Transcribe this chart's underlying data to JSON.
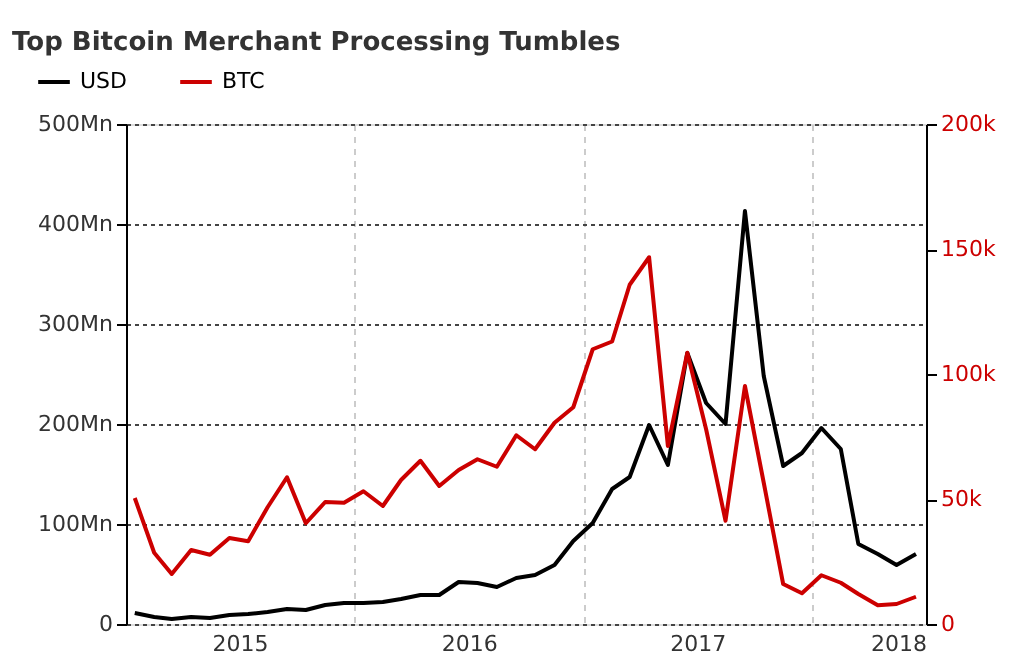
{
  "chart_data": {
    "type": "line",
    "title": "Top Bitcoin Merchant Processing Tumbles",
    "x": [
      "2015-01-15",
      "2015-02-15",
      "2015-03-15",
      "2015-04-15",
      "2015-05-15",
      "2015-06-15",
      "2015-07-15",
      "2015-08-15",
      "2015-09-15",
      "2015-10-15",
      "2015-11-15",
      "2015-12-15",
      "2016-01-15",
      "2016-02-15",
      "2016-03-15",
      "2016-04-15",
      "2016-05-15",
      "2016-06-15",
      "2016-07-15",
      "2016-08-15",
      "2016-09-15",
      "2016-10-15",
      "2016-11-15",
      "2016-12-15",
      "2017-01-15",
      "2017-02-15",
      "2017-03-15",
      "2017-04-15",
      "2017-05-15",
      "2017-06-15",
      "2017-07-15",
      "2017-08-15",
      "2017-09-15",
      "2017-10-15",
      "2017-11-15",
      "2017-12-15",
      "2018-01-15",
      "2018-02-15",
      "2018-03-15",
      "2018-04-15",
      "2018-05-15",
      "2018-06-15"
    ],
    "series": [
      {
        "name": "USD",
        "color": "#000000",
        "values": [
          11,
          7,
          5,
          7,
          6,
          9,
          10,
          12,
          15,
          14,
          19,
          21,
          21,
          22,
          25,
          29,
          29,
          42,
          41,
          37,
          46,
          49,
          59,
          83,
          101,
          135,
          147,
          199,
          159,
          271,
          221,
          200,
          413,
          248,
          158,
          171,
          196,
          175,
          80,
          70,
          59,
          70
        ]
      },
      {
        "name": "BTC",
        "color": "#cc0000",
        "axis": "y2",
        "values": [
          50400,
          28500,
          20000,
          29600,
          27700,
          34400,
          33100,
          46700,
          58700,
          40300,
          48800,
          48500,
          53100,
          47200,
          57600,
          65300,
          55200,
          61600,
          65900,
          62900,
          75500,
          69900,
          80500,
          86700,
          109900,
          113000,
          135700,
          146700,
          71200,
          108500,
          77900,
          41300,
          95200,
          56500,
          16000,
          12300,
          19500,
          16500,
          12000,
          7500,
          8000,
          10900
        ]
      }
    ],
    "xlim": [
      "2015-01-01",
      "2018-07-01"
    ],
    "xticks": [
      {
        "value": "2015-01-01",
        "label": null
      },
      {
        "value": "2015-07-01",
        "label": "2015"
      },
      {
        "value": "2016-01-01",
        "label": null
      },
      {
        "value": "2016-07-01",
        "label": "2016"
      },
      {
        "value": "2017-01-01",
        "label": null
      },
      {
        "value": "2017-07-01",
        "label": "2017"
      },
      {
        "value": "2018-01-01",
        "label": null
      },
      {
        "value": "2018-07-01",
        "label": "2018"
      }
    ],
    "ylim": [
      0,
      500
    ],
    "yticks": [
      {
        "value": 0,
        "label": "0"
      },
      {
        "value": 100,
        "label": "100Mn"
      },
      {
        "value": 200,
        "label": "200Mn"
      },
      {
        "value": 300,
        "label": "300Mn"
      },
      {
        "value": 400,
        "label": "400Mn"
      },
      {
        "value": 500,
        "label": "500Mn"
      }
    ],
    "y2lim": [
      0,
      200000
    ],
    "y2ticks": [
      {
        "value": 0,
        "label": "0"
      },
      {
        "value": 50000,
        "label": "50k"
      },
      {
        "value": 100000,
        "label": "100k"
      },
      {
        "value": 150000,
        "label": "150k"
      },
      {
        "value": 200000,
        "label": "200k"
      }
    ],
    "grid": true,
    "legend": "top left",
    "marker": "none",
    "line_style": "solid"
  }
}
